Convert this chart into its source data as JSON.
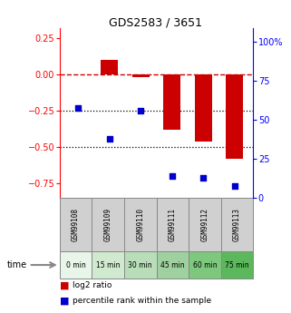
{
  "title": "GDS2583 / 3651",
  "samples": [
    "GSM99108",
    "GSM99109",
    "GSM99110",
    "GSM99111",
    "GSM99112",
    "GSM99113"
  ],
  "time_labels": [
    "0 min",
    "15 min",
    "30 min",
    "45 min",
    "60 min",
    "75 min"
  ],
  "time_colors": [
    "#e8f5e9",
    "#d4edda",
    "#c8e6c9",
    "#b2dfdb",
    "#81c784",
    "#66bb6a"
  ],
  "log2_ratio": [
    0.0,
    0.1,
    -0.02,
    -0.38,
    -0.46,
    -0.58
  ],
  "percentile_rank": [
    58,
    38,
    56,
    14,
    13,
    8
  ],
  "bar_color": "#cc0000",
  "dot_color": "#0000cc",
  "ylim_left": [
    -0.85,
    0.32
  ],
  "ylim_right": [
    0,
    108.8
  ],
  "yticks_left": [
    -0.75,
    -0.5,
    -0.25,
    0,
    0.25
  ],
  "yticks_right": [
    0,
    25,
    50,
    75,
    100
  ],
  "hline_y": 0,
  "dotted_lines": [
    -0.25,
    -0.5
  ],
  "bar_width": 0.55,
  "bg_color": "#ffffff",
  "gsm_bg": "#d0d0d0",
  "legend_labels": [
    "log2 ratio",
    "percentile rank within the sample"
  ]
}
